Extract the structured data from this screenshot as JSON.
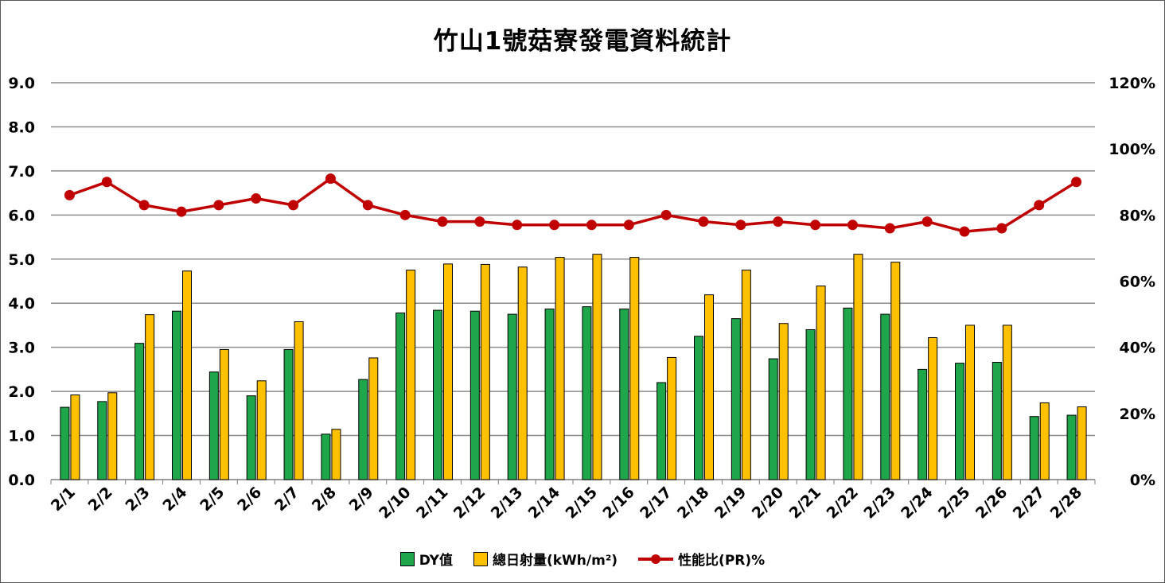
{
  "chart_data": {
    "type": "bar",
    "title": "竹山1號菇寮發電資料統計",
    "categories": [
      "2/1",
      "2/2",
      "2/3",
      "2/4",
      "2/5",
      "2/6",
      "2/7",
      "2/8",
      "2/9",
      "2/10",
      "2/11",
      "2/12",
      "2/13",
      "2/14",
      "2/15",
      "2/16",
      "2/17",
      "2/18",
      "2/19",
      "2/20",
      "2/21",
      "2/22",
      "2/23",
      "2/24",
      "2/25",
      "2/26",
      "2/27",
      "2/28"
    ],
    "series": [
      {
        "name": "DY值",
        "type": "bar",
        "axis": "left",
        "color": "#1fa64b",
        "values": [
          1.64,
          1.77,
          3.09,
          3.82,
          2.44,
          1.9,
          2.95,
          1.03,
          2.27,
          3.78,
          3.84,
          3.82,
          3.75,
          3.87,
          3.92,
          3.87,
          2.2,
          3.25,
          3.65,
          2.74,
          3.4,
          3.89,
          3.75,
          2.5,
          2.64,
          2.66,
          1.43,
          1.46
        ]
      },
      {
        "name": "總日射量(kWh/m²)",
        "type": "bar",
        "axis": "left",
        "color": "#ffc000",
        "values": [
          1.92,
          1.97,
          3.74,
          4.73,
          2.95,
          2.24,
          3.58,
          1.14,
          2.76,
          4.75,
          4.89,
          4.88,
          4.82,
          5.04,
          5.11,
          5.04,
          2.77,
          4.19,
          4.75,
          3.54,
          4.39,
          5.11,
          4.93,
          3.22,
          3.5,
          3.5,
          1.74,
          1.65
        ]
      },
      {
        "name": "性能比(PR)%",
        "type": "line",
        "axis": "right",
        "color": "#c00000",
        "values": [
          86,
          90,
          83,
          81,
          83,
          85,
          83,
          91,
          83,
          80,
          78,
          78,
          77,
          77,
          77,
          77,
          80,
          78,
          77,
          78,
          77,
          77,
          76,
          78,
          75,
          76,
          83,
          90
        ]
      }
    ],
    "y_left": {
      "min": 0,
      "max": 9,
      "step": 1,
      "tick_labels": [
        "0.0",
        "1.0",
        "2.0",
        "3.0",
        "4.0",
        "5.0",
        "6.0",
        "7.0",
        "8.0",
        "9.0"
      ]
    },
    "y_right": {
      "min": 0,
      "max": 120,
      "step": 20,
      "tick_labels": [
        "0%",
        "20%",
        "40%",
        "60%",
        "80%",
        "100%",
        "120%"
      ]
    },
    "grid": true,
    "legend_position": "bottom"
  }
}
